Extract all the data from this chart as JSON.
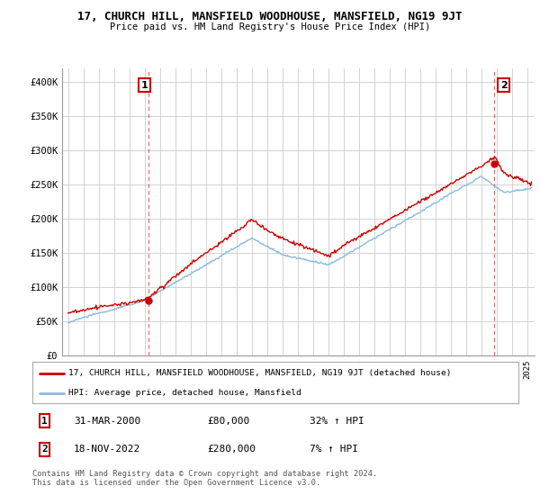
{
  "title": "17, CHURCH HILL, MANSFIELD WOODHOUSE, MANSFIELD, NG19 9JT",
  "subtitle": "Price paid vs. HM Land Registry's House Price Index (HPI)",
  "ylim": [
    0,
    420000
  ],
  "yticks": [
    0,
    50000,
    100000,
    150000,
    200000,
    250000,
    300000,
    350000,
    400000
  ],
  "ytick_labels": [
    "£0",
    "£50K",
    "£100K",
    "£150K",
    "£200K",
    "£250K",
    "£300K",
    "£350K",
    "£400K"
  ],
  "background_color": "#ffffff",
  "grid_color": "#cccccc",
  "sale1_x": 2000.25,
  "sale1_y": 80000,
  "sale2_x": 2022.88,
  "sale2_y": 280000,
  "legend_line1": "17, CHURCH HILL, MANSFIELD WOODHOUSE, MANSFIELD, NG19 9JT (detached house)",
  "legend_line2": "HPI: Average price, detached house, Mansfield",
  "table_row1": [
    "1",
    "31-MAR-2000",
    "£80,000",
    "32% ↑ HPI"
  ],
  "table_row2": [
    "2",
    "18-NOV-2022",
    "£280,000",
    "7% ↑ HPI"
  ],
  "footnote1": "Contains HM Land Registry data © Crown copyright and database right 2024.",
  "footnote2": "This data is licensed under the Open Government Licence v3.0.",
  "red_color": "#cc0000",
  "blue_color": "#88bbdd",
  "badge_edgecolor": "#cc0000",
  "xlim_left": 1994.6,
  "xlim_right": 2025.5
}
